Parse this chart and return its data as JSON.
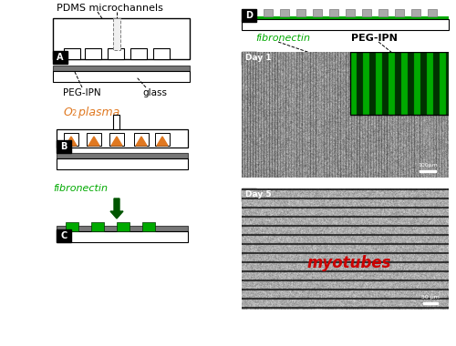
{
  "bg_color": "#ffffff",
  "title_pdms": "PDMS microchannels",
  "label_peg_ipn": "PEG-IPN",
  "label_glass": "glass",
  "label_o2_main": "O",
  "label_o2_sub": "2",
  "label_o2_rest": " plasma",
  "label_fibronectin_C": "fibronectin",
  "label_fibronectin_E": "fibronectin",
  "label_peg_ipn_E": "PEG-IPN",
  "label_day1": "Day 1",
  "label_day5": "Day 5",
  "label_myotubes": "myotubes",
  "label_100um": "100μm",
  "label_50um": "50 μm",
  "green_color": "#00aa00",
  "orange_color": "#e07820",
  "red_color": "#cc0000",
  "dark_gray": "#666666",
  "black": "#000000",
  "white": "#ffffff",
  "pdms_gray": "#aaaaaa",
  "dark_green": "#005500",
  "substrate_dark": "#777777"
}
